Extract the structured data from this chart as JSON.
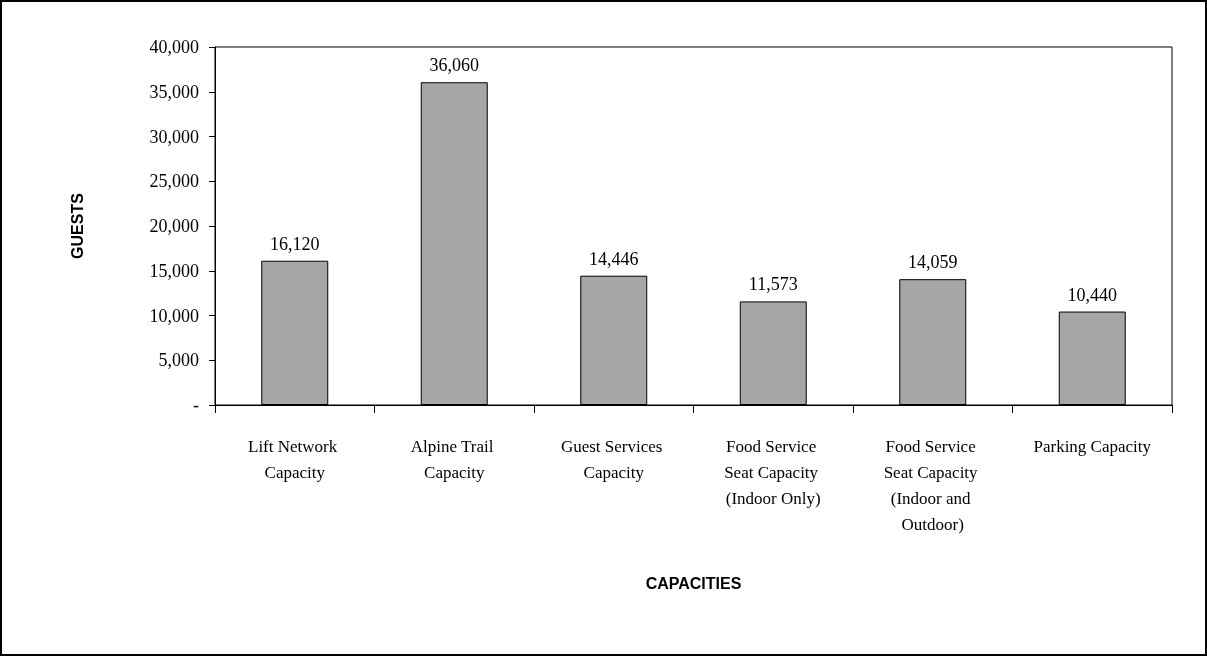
{
  "chart_data": {
    "type": "bar",
    "xlabel": "CAPACITIES",
    "ylabel": "GUESTS",
    "categories": [
      "Lift Network Capacity",
      "Alpine Trail Capacity",
      "Guest Services Capacity",
      "Food Service Seat Capacity (Indoor Only)",
      "Food Service Seat Capacity (Indoor and Outdoor)",
      "Parking Capacity"
    ],
    "values": [
      16120,
      36060,
      14446,
      11573,
      14059,
      10440
    ],
    "color": "#a6a6a6",
    "ylim": [
      0,
      40000
    ],
    "yticks": [
      {
        "value": 0,
        "label": "-"
      },
      {
        "value": 5000,
        "label": "5,000"
      },
      {
        "value": 10000,
        "label": "10,000"
      },
      {
        "value": 15000,
        "label": "15,000"
      },
      {
        "value": 20000,
        "label": "20,000"
      },
      {
        "value": 25000,
        "label": "25,000"
      },
      {
        "value": 30000,
        "label": "30,000"
      },
      {
        "value": 35000,
        "label": "35,000"
      },
      {
        "value": 40000,
        "label": "40,000"
      }
    ],
    "value_labels": [
      "16,120",
      "36,060",
      "14,446",
      "11,573",
      "14,059",
      "10,440"
    ],
    "grid": false
  }
}
